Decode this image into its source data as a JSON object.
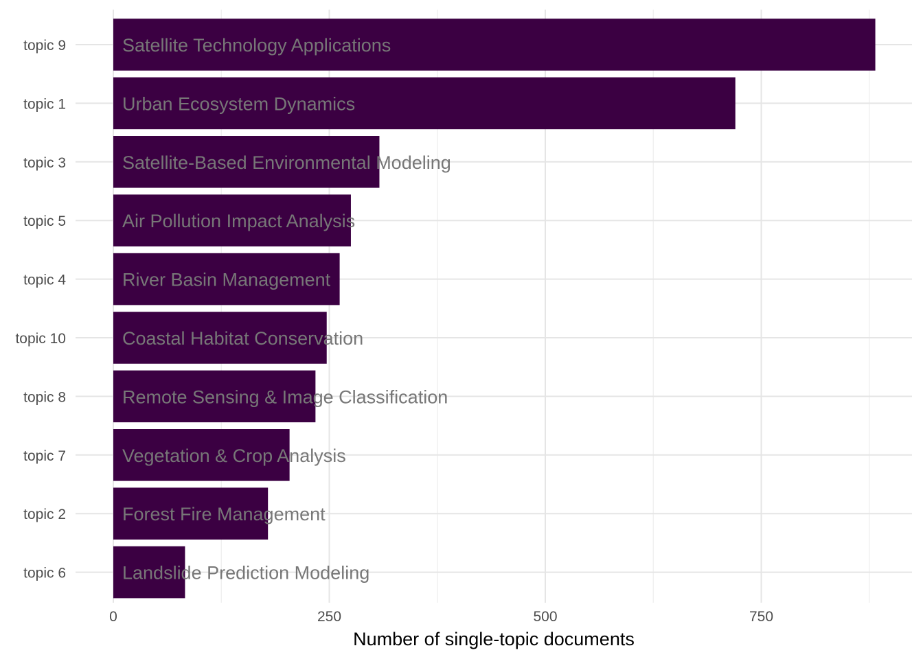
{
  "chart_data": {
    "type": "bar",
    "orientation": "horizontal",
    "title": "",
    "xlabel": "Number of single-topic documents",
    "ylabel": "",
    "xlim": [
      0,
      890
    ],
    "x_ticks": [
      0,
      250,
      500,
      750
    ],
    "grid": true,
    "legend": "none",
    "categories": [
      "topic 9",
      "topic 1",
      "topic 3",
      "topic 5",
      "topic 4",
      "topic 10",
      "topic 8",
      "topic 7",
      "topic 2",
      "topic 6"
    ],
    "values": [
      882,
      720,
      308,
      275,
      262,
      247,
      234,
      204,
      179,
      83
    ],
    "bar_labels": [
      "Satellite Technology Applications",
      "Urban Ecosystem Dynamics",
      "Satellite-Based Environmental Modeling",
      "Air Pollution Impact Analysis",
      "River Basin Management",
      "Coastal Habitat Conservation",
      "Remote Sensing & Image Classification",
      "Vegetation & Crop Analysis",
      "Forest Fire Management",
      "Landslide Prediction Modeling"
    ],
    "colors": {
      "bar": "#3b0042",
      "bar_label": "#777777",
      "grid_major": "#e5e5e5",
      "grid_minor": "#f0f0f0",
      "tick_text": "#4d4d4d",
      "axis_title": "#000000"
    }
  }
}
